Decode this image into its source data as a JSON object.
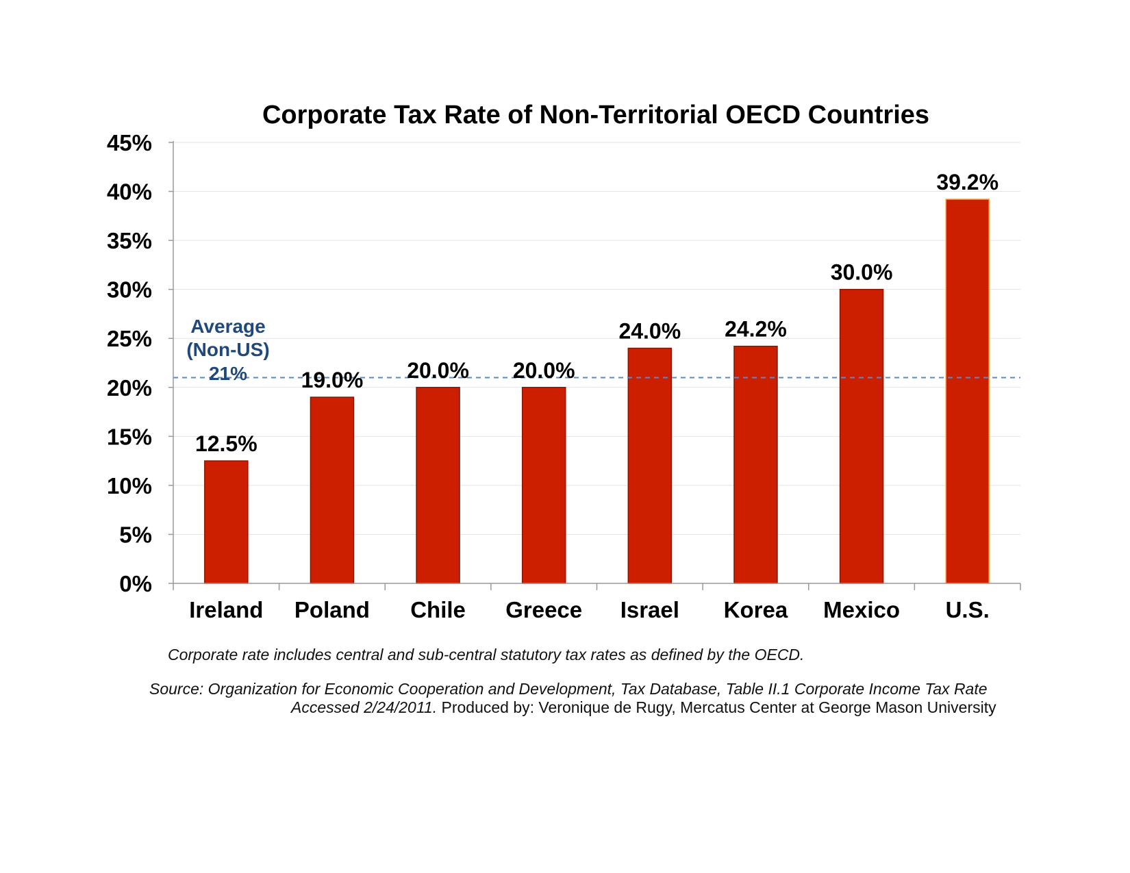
{
  "chart_data": {
    "type": "bar",
    "title": "Corporate Tax Rate of Non-Territorial OECD Countries",
    "xlabel": "",
    "ylabel": "",
    "categories": [
      "Ireland",
      "Poland",
      "Chile",
      "Greece",
      "Israel",
      "Korea",
      "Mexico",
      "U.S."
    ],
    "values": [
      12.5,
      19.0,
      20.0,
      20.0,
      24.0,
      24.2,
      30.0,
      39.2
    ],
    "data_labels": [
      "12.5%",
      "19.0%",
      "20.0%",
      "20.0%",
      "24.0%",
      "24.2%",
      "30.0%",
      "39.2%"
    ],
    "ylim": [
      0,
      45
    ],
    "yticks": [
      0,
      5,
      10,
      15,
      20,
      25,
      30,
      35,
      40,
      45
    ],
    "ytick_labels": [
      "0%",
      "5%",
      "10%",
      "15%",
      "20%",
      "25%",
      "30%",
      "35%",
      "40%",
      "45%"
    ],
    "grid": true,
    "bar_color": "#cc1f00",
    "reference_line": {
      "value": 21,
      "label_lines": [
        "Average",
        "(Non-US)",
        "21%"
      ],
      "color": "#5a8ac6",
      "label_color": "#1f497d"
    }
  },
  "footnote": "Corporate rate includes central and sub-central statutory tax rates as defined by the OECD.",
  "source": {
    "prefix": "Source:  ",
    "line1": "Organization for Economic Cooperation and Development, Tax Database, Table II.1 Corporate Income Tax Rate",
    "line2_italic": "Accessed 2/24/2011.",
    "line2_rest": " Produced by: Veronique de Rugy, Mercatus Center at George Mason University"
  }
}
